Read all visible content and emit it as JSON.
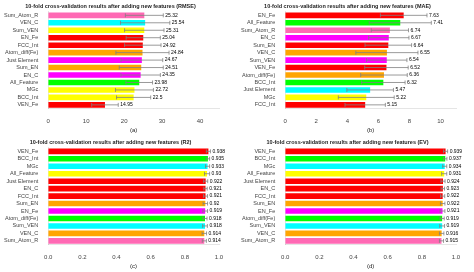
{
  "chart_data": [
    {
      "type": "bar",
      "orientation": "horizontal",
      "title": "10-fold cross-validation results after adding new features (RMSE)",
      "xlabel": "(a)",
      "categories": [
        "Sum_Atom_R",
        "VEN_C",
        "Sum_VEN",
        "EN_Fe",
        "FCC_Int",
        "Atom_diff(Fe)",
        "Just Element",
        "Sum_EN",
        "EN_C",
        "All_Feature",
        "MGc",
        "BCC_Int",
        "VEN_Fe"
      ],
      "values": [
        25.32,
        25.54,
        25.31,
        25.04,
        24.92,
        24.84,
        24.67,
        24.51,
        24.35,
        23.98,
        22.72,
        22.5,
        14.95
      ],
      "errors": [
        5.0,
        6.5,
        5.2,
        4.5,
        4.8,
        7.0,
        5.5,
        5.8,
        5.2,
        3.5,
        5.0,
        4.5,
        3.5
      ],
      "colors": [
        "#ff69b4",
        "#00ffff",
        "#ffff00",
        "#ff0000",
        "#ff0000",
        "#ffa500",
        "#ff00ff",
        "#ffa500",
        "#ff00ff",
        "#00ff00",
        "#ffff00",
        "#ffff00",
        "#ff0000"
      ],
      "xlim": [
        0,
        45
      ],
      "xticks": [
        0,
        10,
        20,
        30,
        40
      ],
      "grid": false,
      "data_labels": true
    },
    {
      "type": "bar",
      "orientation": "horizontal",
      "title": "10-fold cross-validation results after adding new features (MAE)",
      "xlabel": "(b)",
      "categories": [
        "EN_Fe",
        "All_Feature",
        "Sum_Atom_R",
        "EN_C",
        "Sum_EN",
        "VEN_C",
        "Sum_VEN",
        "VEN_Fe",
        "Atom_diff(Fe)",
        "BCC_Int",
        "Just Element",
        "MGc",
        "FCC_Int"
      ],
      "values": [
        7.63,
        7.41,
        6.74,
        6.67,
        6.64,
        6.55,
        6.54,
        6.52,
        6.36,
        6.32,
        5.47,
        5.22,
        5.15
      ],
      "errors": [
        1.5,
        2.0,
        1.2,
        1.3,
        1.5,
        2.0,
        1.3,
        1.4,
        1.5,
        1.4,
        1.5,
        1.8,
        1.3
      ],
      "colors": [
        "#ff0000",
        "#00ff00",
        "#ff69b4",
        "#ff00ff",
        "#ff0000",
        "#ffa500",
        "#ff00ff",
        "#ff0000",
        "#ffa500",
        "#00ff00",
        "#00ffff",
        "#ffff00",
        "#ff0000"
      ],
      "xlim": [
        0,
        11
      ],
      "xticks": [
        0,
        2,
        4,
        6,
        8,
        10
      ],
      "grid": false,
      "data_labels": true
    },
    {
      "type": "bar",
      "orientation": "horizontal",
      "title": "10-fold cross-validation results after adding new features (R2)",
      "xlabel": "(c)",
      "categories": [
        "VEN_Fe",
        "BCC_Int",
        "MGc",
        "All_Feature",
        "Just Element",
        "EN_C",
        "FCC_Int",
        "Sum_EN",
        "EN_Fe",
        "Atom_diff(Fe)",
        "Sum_VEN",
        "VEN_C",
        "Sum_Atom_R"
      ],
      "values": [
        0.938,
        0.935,
        0.933,
        0.93,
        0.922,
        0.921,
        0.921,
        0.92,
        0.919,
        0.918,
        0.918,
        0.914,
        0.914
      ],
      "errors": [
        0.012,
        0.01,
        0.012,
        0.015,
        0.012,
        0.01,
        0.012,
        0.013,
        0.014,
        0.012,
        0.014,
        0.013,
        0.012
      ],
      "colors": [
        "#ff0000",
        "#00ff00",
        "#00ffff",
        "#ffff00",
        "#ff0000",
        "#ff0000",
        "#ff0000",
        "#ffa500",
        "#ff00ff",
        "#00ff00",
        "#00ffff",
        "#ffa500",
        "#ff69b4"
      ],
      "xlim": [
        0.0,
        1.0
      ],
      "xticks": [
        {
          "value": 0.0,
          "label": "0.0"
        },
        0.2,
        0.4,
        0.6,
        0.8,
        {
          "value": 1.0,
          "label": "1.0"
        }
      ],
      "grid": false,
      "data_labels": true
    },
    {
      "type": "bar",
      "orientation": "horizontal",
      "title": "10-fold cross-validation results after adding new features (EV)",
      "xlabel": "(d)",
      "categories": [
        "VEN_Fe",
        "BCC_Int",
        "MGc",
        "All_Feature",
        "Just Element",
        "EN_C",
        "FCC_Int",
        "Sum_EN",
        "EN_Fe",
        "Atom_diff(Fe)",
        "Sum_VEN",
        "VEN_C",
        "Sum_Atom_R"
      ],
      "values": [
        0.939,
        0.937,
        0.934,
        0.931,
        0.924,
        0.923,
        0.922,
        0.922,
        0.921,
        0.919,
        0.919,
        0.916,
        0.915
      ],
      "errors": [
        0.012,
        0.01,
        0.012,
        0.015,
        0.012,
        0.01,
        0.012,
        0.013,
        0.014,
        0.012,
        0.014,
        0.013,
        0.012
      ],
      "colors": [
        "#ff0000",
        "#00ff00",
        "#00ffff",
        "#ffff00",
        "#ff0000",
        "#ff0000",
        "#ff0000",
        "#ffa500",
        "#ff00ff",
        "#00ff00",
        "#00ffff",
        "#ffa500",
        "#ff69b4"
      ],
      "xlim": [
        0.0,
        1.0
      ],
      "xticks": [
        {
          "value": 0.0,
          "label": "0.0"
        },
        0.2,
        0.4,
        0.6,
        0.8,
        {
          "value": 1.0,
          "label": "1.0"
        }
      ],
      "grid": false,
      "data_labels": true
    }
  ]
}
